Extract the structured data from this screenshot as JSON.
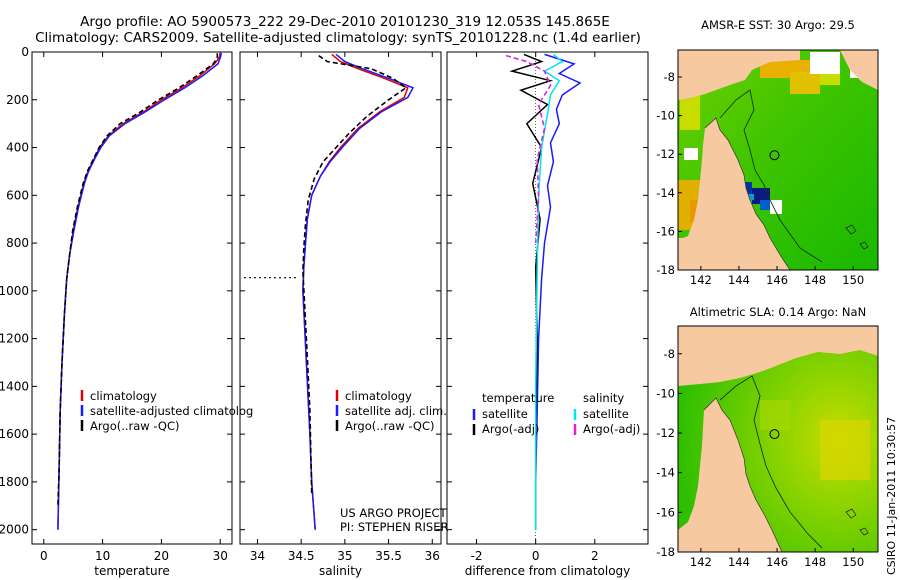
{
  "header": {
    "title": "Argo profile: AO 5900573_222 29-Dec-2010 20101230_319 12.053S 145.865E",
    "subtitle": "Climatology: CARS2009. Satellite-adjusted climatology: synTS_20101228.nc (1.4d earlier)"
  },
  "footer": {
    "project": "US ARGO PROJECT",
    "pi": "PI: STEPHEN RISER",
    "stamp": "CSIRO 11-Jan-2011 10:30:57"
  },
  "colors": {
    "climatology": "#e00000",
    "satellite": "#1a1aff",
    "argo": "#000000",
    "salinity_satellite": "#00e5ee",
    "salinity_argo": "#e020e0",
    "land": "#f7c9a0"
  },
  "chart_data": [
    {
      "type": "line",
      "id": "temperature",
      "xlabel": "temperature",
      "ylabel": "",
      "xlim": [
        -2,
        32
      ],
      "ylim": [
        2060,
        0
      ],
      "xticks": [
        0,
        10,
        20,
        30
      ],
      "yticks": [
        0,
        200,
        400,
        600,
        800,
        1000,
        1200,
        1400,
        1600,
        1800,
        2000
      ],
      "legend": [
        "climatology",
        "satellite-adjusted climatology",
        "Argo(..raw -QC)"
      ],
      "legend_display": [
        "climatology",
        "satellite-adjusted climatolog",
        "Argo(..raw -QC)"
      ],
      "series": [
        {
          "name": "climatology",
          "style": "solid",
          "x": [
            30.0,
            29.8,
            29.0,
            26.5,
            23.5,
            20.0,
            17.0,
            13.5,
            11.0,
            9.5,
            8.5,
            7.5,
            6.8,
            5.8,
            5.0,
            4.4,
            3.9,
            3.5,
            3.1,
            2.8,
            2.6,
            2.4
          ],
          "y": [
            5,
            25,
            50,
            100,
            150,
            200,
            250,
            300,
            350,
            400,
            450,
            500,
            550,
            650,
            750,
            850,
            950,
            1100,
            1300,
            1500,
            1750,
            2000
          ]
        },
        {
          "name": "satellite-adjusted climatology",
          "style": "solid",
          "x": [
            30.2,
            30.0,
            29.6,
            27.0,
            24.0,
            20.5,
            17.3,
            13.8,
            11.2,
            9.7,
            8.6,
            7.6,
            6.9,
            5.9,
            5.1,
            4.4,
            3.9,
            3.5,
            3.1,
            2.8,
            2.6,
            2.4
          ],
          "y": [
            5,
            25,
            50,
            100,
            150,
            200,
            250,
            300,
            350,
            400,
            450,
            500,
            550,
            650,
            750,
            850,
            950,
            1100,
            1300,
            1500,
            1750,
            2000
          ]
        },
        {
          "name": "Argo(..raw -QC)",
          "style": "dashed",
          "x": [
            29.5,
            29.5,
            28.8,
            26.0,
            23.0,
            19.5,
            16.5,
            13.0,
            10.8,
            9.4,
            8.4,
            7.4,
            6.7,
            5.7,
            4.9,
            4.4,
            3.9,
            3.5,
            3.1,
            2.8,
            2.6,
            2.4
          ],
          "y": [
            5,
            25,
            50,
            100,
            150,
            200,
            250,
            300,
            350,
            400,
            450,
            500,
            550,
            650,
            750,
            850,
            950,
            1100,
            1300,
            1500,
            1750,
            1900
          ]
        }
      ]
    },
    {
      "type": "line",
      "id": "salinity",
      "xlabel": "salinity",
      "ylabel": "",
      "xlim": [
        33.8,
        36.1
      ],
      "ylim": [
        2060,
        0
      ],
      "xticks": [
        34,
        34.5,
        35,
        35.5,
        36
      ],
      "xtick_labels": [
        "34",
        "34.5",
        "35",
        "35.5",
        "36"
      ],
      "legend": [
        "climatology",
        "satellite adj. clim.",
        "Argo(..raw -QC)"
      ],
      "series": [
        {
          "name": "climatology",
          "style": "solid",
          "x": [
            34.85,
            34.95,
            35.15,
            35.45,
            35.72,
            35.68,
            35.4,
            35.15,
            34.95,
            34.82,
            34.72,
            34.62,
            34.57,
            34.55,
            34.53,
            34.52,
            34.56,
            34.6,
            34.62,
            34.66
          ],
          "y": [
            10,
            40,
            70,
            110,
            150,
            190,
            250,
            320,
            400,
            460,
            520,
            600,
            700,
            800,
            900,
            1000,
            1300,
            1600,
            1800,
            2000
          ]
        },
        {
          "name": "satellite adj. clim.",
          "style": "solid",
          "x": [
            34.9,
            35.0,
            35.2,
            35.5,
            35.78,
            35.72,
            35.42,
            35.17,
            34.97,
            34.83,
            34.72,
            34.62,
            34.57,
            34.55,
            34.53,
            34.52,
            34.56,
            34.6,
            34.62,
            34.66
          ],
          "y": [
            10,
            40,
            70,
            110,
            150,
            190,
            250,
            320,
            400,
            460,
            520,
            600,
            700,
            800,
            900,
            1000,
            1300,
            1600,
            1800,
            2000
          ]
        },
        {
          "name": "Argo(..raw -QC)",
          "style": "dashed",
          "x": [
            34.7,
            34.8,
            35.3,
            35.55,
            35.7,
            35.5,
            35.25,
            35.05,
            34.9,
            34.75,
            34.65,
            34.58,
            34.55,
            34.53,
            34.52,
            34.56,
            34.6,
            34.62
          ],
          "y": [
            15,
            40,
            70,
            110,
            150,
            200,
            270,
            340,
            400,
            460,
            530,
            620,
            720,
            820,
            920,
            1200,
            1500,
            1850
          ]
        }
      ]
    },
    {
      "type": "line",
      "id": "difference",
      "xlabel": "difference from climatology",
      "ylabel": "",
      "xlim": [
        -3,
        3.8
      ],
      "ylim": [
        2060,
        0
      ],
      "xticks": [
        -2,
        0,
        2
      ],
      "legend_groups": [
        {
          "heading": "temperature",
          "items": [
            "satellite",
            "Argo(-adj)"
          ]
        },
        {
          "heading": "salinity",
          "items": [
            "satellite",
            "Argo(-adj)"
          ]
        }
      ],
      "series": [
        {
          "name": "temperature satellite",
          "style": "solid",
          "x": [
            0.3,
            1.3,
            0.8,
            1.5,
            0.9,
            0.7,
            0.8,
            0.5,
            0.6,
            0.4,
            0.5,
            0.3,
            0.2,
            0.1,
            0.05,
            0.0,
            0.0
          ],
          "y": [
            10,
            50,
            90,
            130,
            180,
            240,
            300,
            380,
            460,
            560,
            650,
            800,
            950,
            1200,
            1500,
            1800,
            2000
          ]
        },
        {
          "name": "temperature Argo(-adj)",
          "style": "solid",
          "x": [
            -0.4,
            0.2,
            -0.8,
            0.5,
            -0.5,
            0.4,
            -0.3,
            0.2,
            -0.1,
            0.15,
            0.0,
            0.05,
            0.0,
            0.0
          ],
          "y": [
            10,
            40,
            80,
            120,
            160,
            220,
            300,
            400,
            550,
            700,
            900,
            1200,
            1600,
            2000
          ]
        },
        {
          "name": "salinity satellite",
          "style": "solid",
          "x": [
            0.6,
            0.9,
            0.3,
            0.8,
            0.5,
            0.4,
            0.2,
            0.1,
            0.05,
            0.0,
            0.0
          ],
          "y": [
            10,
            40,
            80,
            120,
            180,
            260,
            400,
            600,
            900,
            1400,
            2000
          ]
        },
        {
          "name": "salinity Argo(-adj)",
          "style": "dashed",
          "x": [
            -1.0,
            -0.3,
            0.3,
            0.5,
            0.1,
            0.3,
            0.05,
            0.1,
            0.0
          ],
          "y": [
            15,
            40,
            80,
            140,
            220,
            320,
            450,
            600,
            800
          ]
        }
      ]
    },
    {
      "type": "heatmap",
      "id": "sst-map",
      "title": "AMSR-E SST: 30 Argo: 29.5",
      "xlim": [
        140.8,
        151.3
      ],
      "ylim": [
        -18,
        -6.6
      ],
      "xticks": [
        142,
        144,
        146,
        148,
        150
      ],
      "yticks": [
        -8,
        -10,
        -12,
        -14,
        -16,
        -18
      ],
      "marker": {
        "lon": 145.865,
        "lat": -12.053
      }
    },
    {
      "type": "heatmap",
      "id": "sla-map",
      "title": "Altimetric SLA: 0.14 Argo: NaN",
      "xlim": [
        140.8,
        151.3
      ],
      "ylim": [
        -18,
        -6.6
      ],
      "xticks": [
        142,
        144,
        146,
        148,
        150
      ],
      "yticks": [
        -8,
        -10,
        -12,
        -14,
        -16,
        -18
      ],
      "marker": {
        "lon": 145.865,
        "lat": -12.053
      }
    }
  ]
}
